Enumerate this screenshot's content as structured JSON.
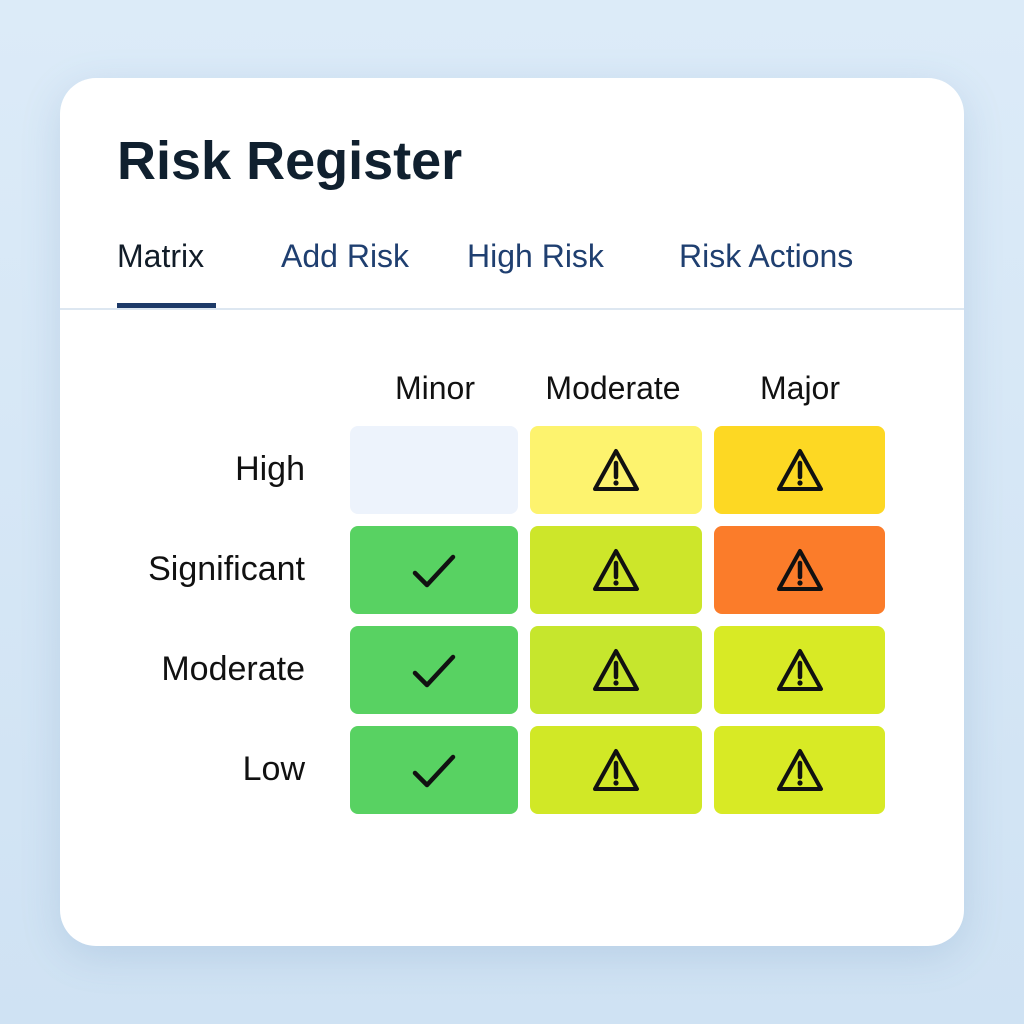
{
  "header": {
    "title": "Risk Register"
  },
  "tabs": [
    {
      "label": "Matrix",
      "active": true
    },
    {
      "label": "Add Risk"
    },
    {
      "label": "High Risk"
    },
    {
      "label": "Risk Actions"
    }
  ],
  "matrix": {
    "columns": [
      "Minor",
      "Moderate",
      "Major"
    ],
    "rows": [
      {
        "label": "High",
        "cells": [
          {
            "icon": "none",
            "color": "#edf3fc"
          },
          {
            "icon": "warning-icon",
            "color": "#fdf36e"
          },
          {
            "icon": "warning-icon",
            "color": "#fdd823"
          }
        ]
      },
      {
        "label": "Significant",
        "cells": [
          {
            "icon": "check-icon",
            "color": "#58d262"
          },
          {
            "icon": "warning-icon",
            "color": "#cde62a"
          },
          {
            "icon": "warning-icon",
            "color": "#fb7c2a"
          }
        ]
      },
      {
        "label": "Moderate",
        "cells": [
          {
            "icon": "check-icon",
            "color": "#58d262"
          },
          {
            "icon": "warning-icon",
            "color": "#c6e62d"
          },
          {
            "icon": "warning-icon",
            "color": "#d8ea25"
          }
        ]
      },
      {
        "label": "Low",
        "cells": [
          {
            "icon": "check-icon",
            "color": "#58d262"
          },
          {
            "icon": "warning-icon",
            "color": "#d1e826"
          },
          {
            "icon": "warning-icon",
            "color": "#d8ea25"
          }
        ]
      }
    ]
  }
}
